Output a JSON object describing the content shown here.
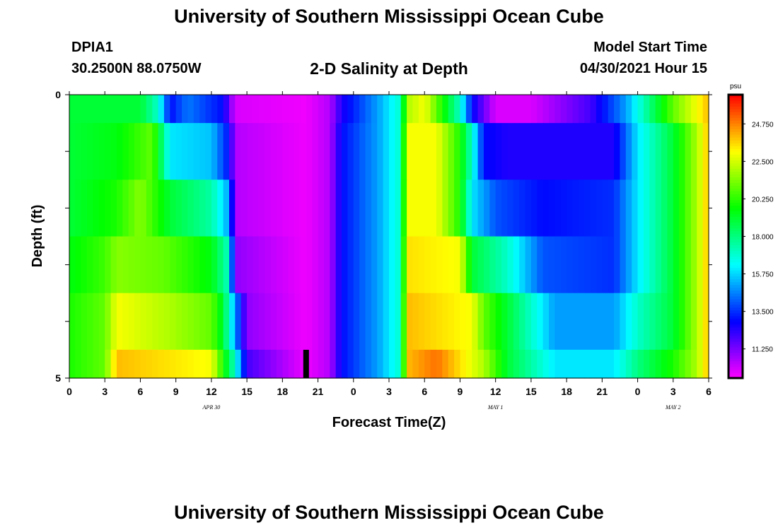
{
  "header": {
    "title": "University of Southern Mississippi Ocean Cube",
    "station_id": "DPIA1",
    "coords": "30.2500N  88.0750W",
    "plot_title": "2-D Salinity at Depth",
    "model_start_label": "Model Start Time",
    "model_start_value": "04/30/2021 Hour 15"
  },
  "footer": {
    "title": "University of Southern Mississippi Ocean Cube"
  },
  "chart_data": {
    "type": "heatmap",
    "title": "2-D Salinity at Depth",
    "xlabel": "Forecast Time(Z)",
    "ylabel": "Depth (ft)",
    "y_ticks": [
      "0",
      "5"
    ],
    "x_tick_labels": [
      "0",
      "3",
      "6",
      "9",
      "12",
      "15",
      "18",
      "21",
      "0",
      "3",
      "6",
      "9",
      "12",
      "15",
      "18",
      "21",
      "0",
      "3",
      "6"
    ],
    "date_labels": [
      {
        "label": "APR 30",
        "at_hour": 12
      },
      {
        "label": "MAY 1",
        "at_hour": 36
      },
      {
        "label": "MAY 2",
        "at_hour": 51
      }
    ],
    "x_range_hours": [
      0,
      54
    ],
    "depth_range_ft": [
      0,
      5
    ],
    "units": "psu",
    "colorbar_ticks": [
      "24.750",
      "22.500",
      "20.250",
      "18.000",
      "15.750",
      "13.500",
      "11.250"
    ],
    "colorbar_values": [
      24.75,
      22.5,
      20.25,
      18.0,
      15.75,
      13.5,
      11.25
    ],
    "colorbar_range": [
      9.5,
      26.5
    ],
    "current_time_hour": 20,
    "layers": [
      {
        "depth": "0.0-0.5 ft",
        "keyframes": [
          [
            0,
            19
          ],
          [
            6,
            19
          ],
          [
            7.5,
            17
          ],
          [
            8.5,
            13
          ],
          [
            10,
            14.5
          ],
          [
            13,
            13
          ],
          [
            14,
            10
          ],
          [
            20,
            9.7
          ],
          [
            22,
            10.5
          ],
          [
            23,
            12.5
          ],
          [
            26,
            15
          ],
          [
            28,
            17
          ],
          [
            28.5,
            22
          ],
          [
            30,
            23
          ],
          [
            32,
            19
          ],
          [
            33,
            17
          ],
          [
            34,
            13
          ],
          [
            36,
            10
          ],
          [
            39,
            10
          ],
          [
            44,
            12
          ],
          [
            47,
            15
          ],
          [
            49,
            18
          ],
          [
            51,
            21
          ],
          [
            53,
            23
          ],
          [
            54,
            24
          ]
        ]
      },
      {
        "depth": "0.5-1.5 ft",
        "keyframes": [
          [
            0,
            19
          ],
          [
            4,
            19.5
          ],
          [
            7,
            21
          ],
          [
            8.5,
            16
          ],
          [
            12,
            15.5
          ],
          [
            13.5,
            13
          ],
          [
            14,
            10.5
          ],
          [
            20,
            9.7
          ],
          [
            22,
            10.5
          ],
          [
            23,
            13
          ],
          [
            26,
            15
          ],
          [
            28,
            17
          ],
          [
            28.5,
            23
          ],
          [
            31,
            23
          ],
          [
            33,
            20
          ],
          [
            34,
            17
          ],
          [
            35,
            13
          ],
          [
            37,
            12.5
          ],
          [
            46,
            12.5
          ],
          [
            48,
            16
          ],
          [
            51,
            19
          ],
          [
            53,
            22
          ],
          [
            54,
            24
          ]
        ]
      },
      {
        "depth": "1.5-2.5 ft",
        "keyframes": [
          [
            0,
            19
          ],
          [
            4,
            20
          ],
          [
            6,
            21.5
          ],
          [
            8.5,
            19
          ],
          [
            12,
            17.5
          ],
          [
            13.5,
            15
          ],
          [
            14,
            10.5
          ],
          [
            20,
            9.7
          ],
          [
            22,
            10.5
          ],
          [
            23,
            13
          ],
          [
            26,
            15
          ],
          [
            28,
            17
          ],
          [
            28.5,
            23
          ],
          [
            31,
            23
          ],
          [
            33,
            20
          ],
          [
            34,
            16
          ],
          [
            36,
            14
          ],
          [
            40,
            13
          ],
          [
            46,
            13.5
          ],
          [
            48,
            16
          ],
          [
            51,
            19
          ],
          [
            53,
            22
          ],
          [
            54,
            24
          ]
        ]
      },
      {
        "depth": "2.5-3.5 ft",
        "keyframes": [
          [
            0,
            19.5
          ],
          [
            3,
            20.5
          ],
          [
            4,
            21.5
          ],
          [
            8,
            21
          ],
          [
            12,
            19.5
          ],
          [
            13.5,
            17
          ],
          [
            14,
            11
          ],
          [
            20,
            9.7
          ],
          [
            22,
            10.5
          ],
          [
            23,
            13
          ],
          [
            26,
            15
          ],
          [
            28,
            17
          ],
          [
            28.5,
            23.5
          ],
          [
            33,
            23
          ],
          [
            34,
            19
          ],
          [
            37,
            17
          ],
          [
            40,
            14
          ],
          [
            46,
            13.5
          ],
          [
            48,
            16
          ],
          [
            51,
            19
          ],
          [
            53,
            22
          ],
          [
            54,
            24
          ]
        ]
      },
      {
        "depth": "3.5-4.5 ft",
        "keyframes": [
          [
            0,
            20
          ],
          [
            3,
            21
          ],
          [
            4,
            23
          ],
          [
            8.5,
            22
          ],
          [
            12,
            21
          ],
          [
            13,
            19
          ],
          [
            14,
            15
          ],
          [
            15,
            11
          ],
          [
            20,
            9.7
          ],
          [
            22,
            10.5
          ],
          [
            23,
            13
          ],
          [
            26,
            15
          ],
          [
            28,
            17
          ],
          [
            28.5,
            24
          ],
          [
            34,
            23
          ],
          [
            35,
            21
          ],
          [
            37,
            19
          ],
          [
            41,
            15
          ],
          [
            46,
            15
          ],
          [
            48,
            17
          ],
          [
            51,
            19
          ],
          [
            53,
            22
          ],
          [
            54,
            24
          ]
        ]
      },
      {
        "depth": "4.5-5.0 ft",
        "keyframes": [
          [
            0,
            20
          ],
          [
            3,
            21
          ],
          [
            4,
            24
          ],
          [
            12,
            23
          ],
          [
            13,
            20
          ],
          [
            14,
            17
          ],
          [
            15,
            12
          ],
          [
            20,
            9.7
          ],
          [
            22,
            10.5
          ],
          [
            23,
            13
          ],
          [
            26,
            15
          ],
          [
            28,
            17
          ],
          [
            28.5,
            24
          ],
          [
            31,
            25
          ],
          [
            35,
            22
          ],
          [
            37,
            19
          ],
          [
            41,
            16
          ],
          [
            46,
            16
          ],
          [
            48,
            18
          ],
          [
            51,
            20
          ],
          [
            53,
            22
          ],
          [
            54,
            24
          ]
        ]
      }
    ]
  }
}
